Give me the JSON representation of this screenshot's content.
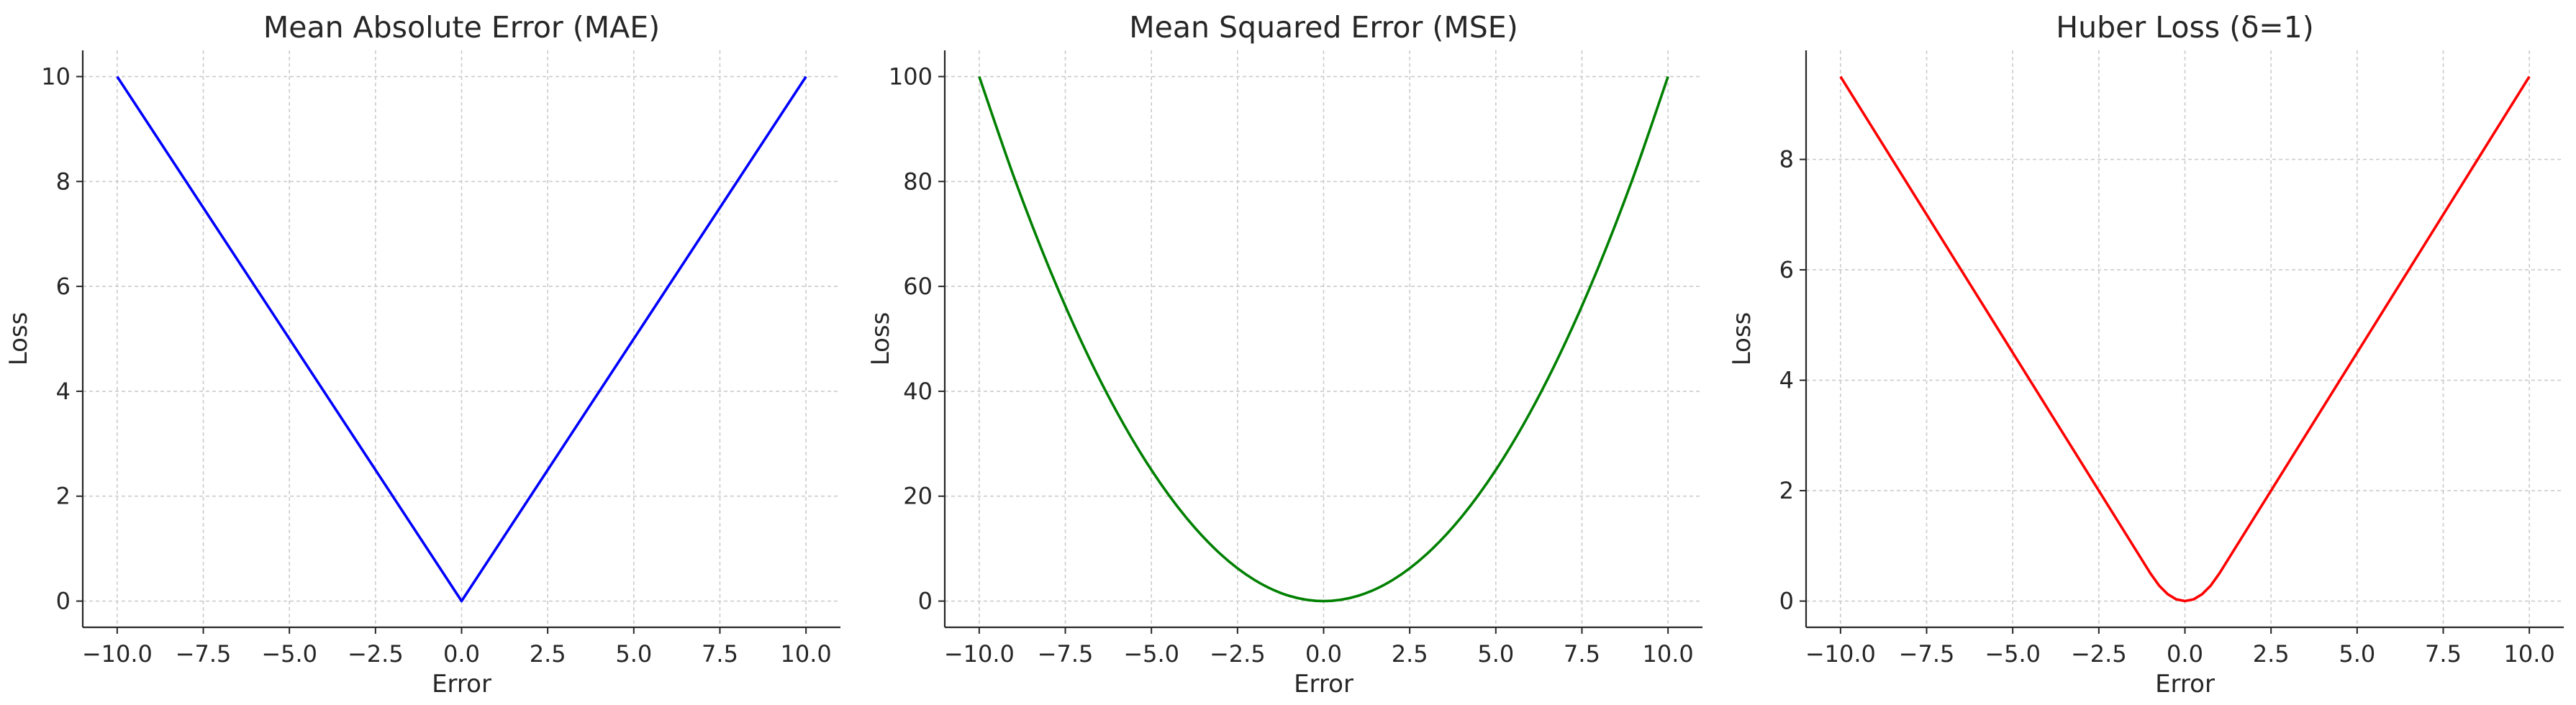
{
  "chart_data": [
    {
      "type": "line",
      "title": "Mean Absolute Error (MAE)",
      "xlabel": "Error",
      "ylabel": "Loss",
      "xlim": [
        -11,
        11
      ],
      "ylim": [
        -0.5,
        10.5
      ],
      "xticks": [
        -10.0,
        -7.5,
        -5.0,
        -2.5,
        0.0,
        2.5,
        5.0,
        7.5,
        10.0
      ],
      "xtick_labels": [
        "−10.0",
        "−7.5",
        "−5.0",
        "−2.5",
        "0.0",
        "2.5",
        "5.0",
        "7.5",
        "10.0"
      ],
      "yticks": [
        0,
        2,
        4,
        6,
        8,
        10
      ],
      "ytick_labels": [
        "0",
        "2",
        "4",
        "6",
        "8",
        "10"
      ],
      "grid": true,
      "color": "#0000ff",
      "series": [
        {
          "x": [
            -10,
            -7.5,
            -5,
            -2.5,
            0,
            2.5,
            5,
            7.5,
            10
          ],
          "y": [
            10,
            7.5,
            5,
            2.5,
            0,
            2.5,
            5,
            7.5,
            10
          ]
        }
      ]
    },
    {
      "type": "line",
      "title": "Mean Squared Error (MSE)",
      "xlabel": "Error",
      "ylabel": "Loss",
      "xlim": [
        -11,
        11
      ],
      "ylim": [
        -5,
        105
      ],
      "xticks": [
        -10.0,
        -7.5,
        -5.0,
        -2.5,
        0.0,
        2.5,
        5.0,
        7.5,
        10.0
      ],
      "xtick_labels": [
        "−10.0",
        "−7.5",
        "−5.0",
        "−2.5",
        "0.0",
        "2.5",
        "5.0",
        "7.5",
        "10.0"
      ],
      "yticks": [
        0,
        20,
        40,
        60,
        80,
        100
      ],
      "ytick_labels": [
        "0",
        "20",
        "40",
        "60",
        "80",
        "100"
      ],
      "grid": true,
      "color": "#008000",
      "series": [
        {
          "x": [
            -10,
            -9,
            -8,
            -7,
            -6,
            -5,
            -4,
            -3,
            -2,
            -1,
            0,
            1,
            2,
            3,
            4,
            5,
            6,
            7,
            8,
            9,
            10
          ],
          "y": [
            100,
            81,
            64,
            49,
            36,
            25,
            16,
            9,
            4,
            1,
            0,
            1,
            4,
            9,
            16,
            25,
            36,
            49,
            64,
            81,
            100
          ]
        }
      ]
    },
    {
      "type": "line",
      "title": "Huber Loss (δ=1)",
      "xlabel": "Error",
      "ylabel": "Loss",
      "xlim": [
        -11,
        11
      ],
      "ylim": [
        -0.475,
        9.975
      ],
      "xticks": [
        -10.0,
        -7.5,
        -5.0,
        -2.5,
        0.0,
        2.5,
        5.0,
        7.5,
        10.0
      ],
      "xtick_labels": [
        "−10.0",
        "−7.5",
        "−5.0",
        "−2.5",
        "0.0",
        "2.5",
        "5.0",
        "7.5",
        "10.0"
      ],
      "yticks": [
        0,
        2,
        4,
        6,
        8
      ],
      "ytick_labels": [
        "0",
        "2",
        "4",
        "6",
        "8"
      ],
      "grid": true,
      "color": "#ff0000",
      "series": [
        {
          "x": [
            -10,
            -7.5,
            -5,
            -2.5,
            -1,
            -0.75,
            -0.5,
            -0.25,
            0,
            0.25,
            0.5,
            0.75,
            1,
            2.5,
            5,
            7.5,
            10
          ],
          "y": [
            9.5,
            7,
            4.5,
            2,
            0.5,
            0.28125,
            0.125,
            0.03125,
            0,
            0.03125,
            0.125,
            0.28125,
            0.5,
            2,
            4.5,
            7,
            9.5
          ]
        }
      ]
    }
  ]
}
